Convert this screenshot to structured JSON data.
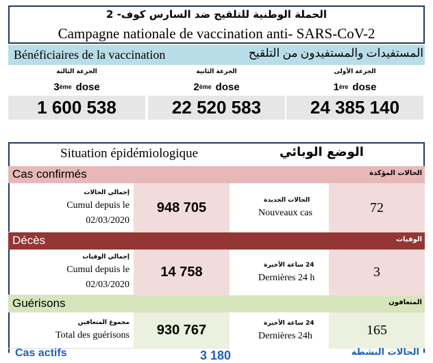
{
  "header": {
    "title_ar": "الحملة الوطنية للتلقيح ضد السارس كوف- 2",
    "title_fr": "Campagne nationale de vaccination anti- SARS-CoV-2"
  },
  "vaccination": {
    "label_fr": "Bénéficiaires de la vaccination",
    "label_ar": "المستفيدات والمستفيدون من التلقيح",
    "doses": [
      {
        "ar": "الجرعة الثالثة",
        "num": "3",
        "sup": "ème",
        "word": "dose",
        "value": "1 600 538"
      },
      {
        "ar": "الجرعة الثانية",
        "num": "2",
        "sup": "ème",
        "word": "dose",
        "value": "22 520 583"
      },
      {
        "ar": "الجرعة الأولى",
        "num": "1",
        "sup": "ère",
        "word": "dose",
        "value": "24 385 140"
      }
    ]
  },
  "situation": {
    "title_fr": "Situation épidémiologique",
    "title_ar": "الوضع الوبائي",
    "sections": [
      {
        "label_fr": "Cas confirmés",
        "label_ar": "الحالات المؤكدة",
        "cumul_ar": "إجمالي الحالات",
        "cumul_fr": "Cumul depuis le",
        "cumul_date": "02/03/2020",
        "cumul_value": "948 705",
        "new_ar": "الحالات الجديدة",
        "new_fr": "Nouveaux cas",
        "new_value": "72"
      },
      {
        "label_fr": "Décès",
        "label_ar": "الوفيات",
        "cumul_ar": "إجمالي الوفيات",
        "cumul_fr": "Cumul depuis le",
        "cumul_date": "02/03/2020",
        "cumul_value": "14 758",
        "new_ar": "24 ساعة الأخيرة",
        "new_fr": "Dernières 24 h",
        "new_value": "3"
      },
      {
        "label_fr": "Guérisons",
        "label_ar": "المتعافون",
        "cumul_ar": "مجموع المتعافين",
        "cumul_fr": "Total des guérisons",
        "cumul_value": "930 767",
        "new_ar": "24 ساعة الأخيرة",
        "new_fr": "Dernières 24h",
        "new_value": "165"
      }
    ]
  },
  "active": {
    "label_fr": "Cas actifs",
    "value": "3 180",
    "label_ar": "الحالات النشطة"
  }
}
